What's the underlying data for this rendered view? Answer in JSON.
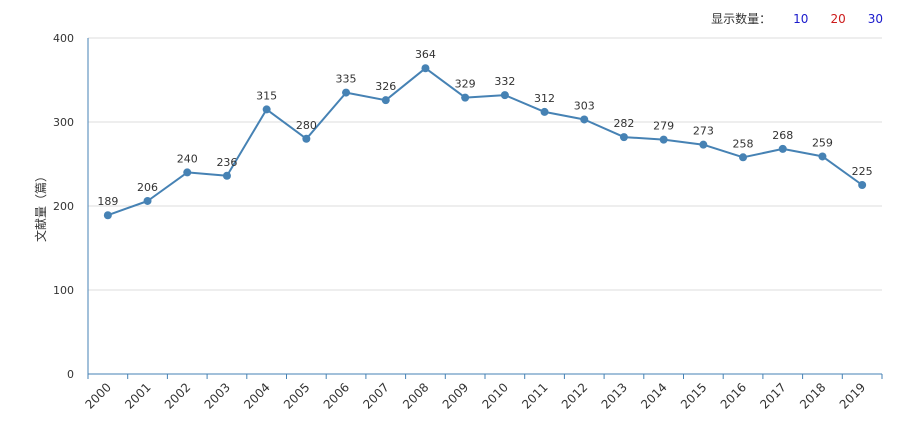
{
  "display_count": {
    "label": "显示数量：",
    "options": [
      {
        "label": "10",
        "color": "#1a1acc"
      },
      {
        "label": "20",
        "color": "#cc1a1a"
      },
      {
        "label": "30",
        "color": "#1a1acc"
      }
    ]
  },
  "colors": {
    "series": "#4682b4",
    "axis": "#4682b4",
    "grid": "#dddddd",
    "text": "#333333"
  },
  "chart_data": {
    "type": "line",
    "title": "",
    "xlabel": "",
    "ylabel": "文献量（篇）",
    "ylim": [
      0,
      400
    ],
    "yticks": [
      0,
      100,
      200,
      300,
      400
    ],
    "grid": true,
    "categories": [
      "2000",
      "2001",
      "2002",
      "2003",
      "2004",
      "2005",
      "2006",
      "2007",
      "2008",
      "2009",
      "2010",
      "2011",
      "2012",
      "2013",
      "2014",
      "2015",
      "2016",
      "2017",
      "2018",
      "2019"
    ],
    "series": [
      {
        "name": "文献量",
        "values": [
          189,
          206,
          240,
          236,
          315,
          280,
          335,
          326,
          364,
          329,
          332,
          312,
          303,
          282,
          279,
          273,
          258,
          268,
          259,
          225
        ]
      }
    ]
  }
}
